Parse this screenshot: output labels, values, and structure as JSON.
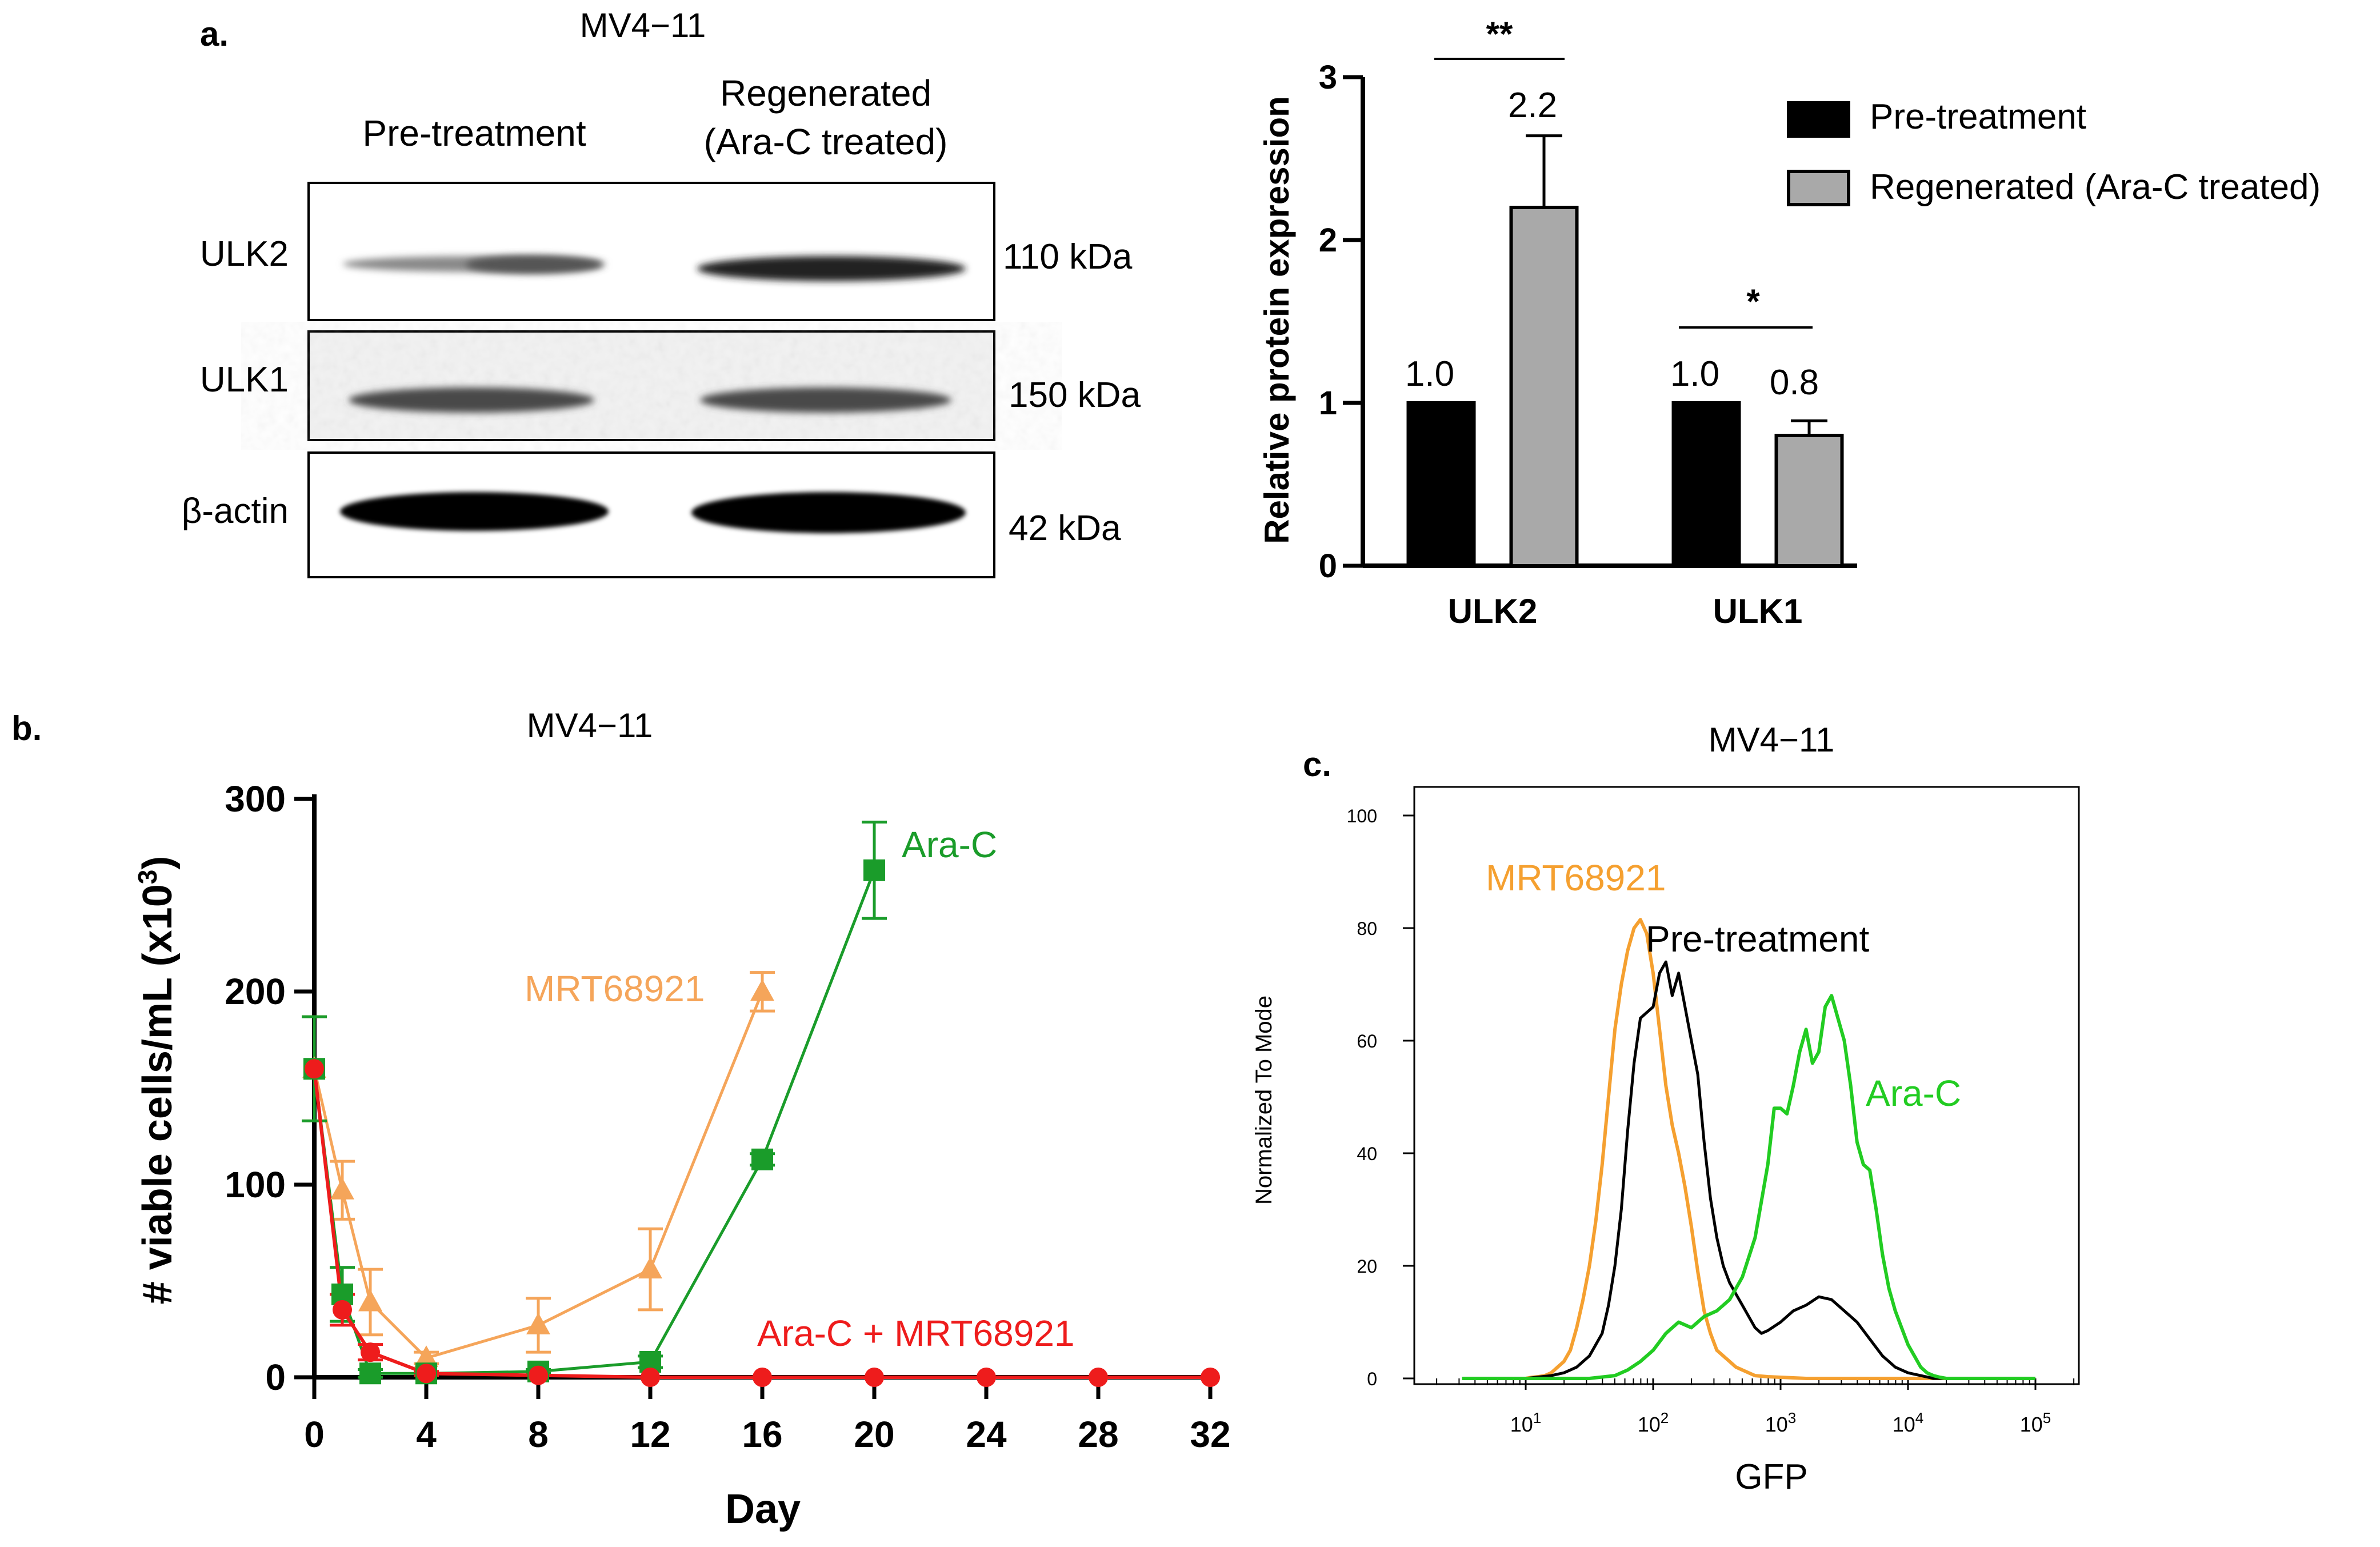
{
  "panel_a": {
    "label": "a.",
    "cell_line": "MV4−11",
    "blot": {
      "columns": [
        "Pre-treatment",
        "Regenerated",
        "(Ara-C treated)"
      ],
      "rows": [
        {
          "protein": "ULK2",
          "size": "110 kDa"
        },
        {
          "protein": "ULK1",
          "size": "150 kDa"
        },
        {
          "protein": "β-actin",
          "size": "42 kDa"
        }
      ]
    }
  },
  "panel_b": {
    "label": "b.",
    "cell_line": "MV4−11"
  },
  "panel_c": {
    "label": "c.",
    "cell_line": "MV4−11"
  },
  "colors": {
    "pre": "#000000",
    "regen": "#a9a9a9",
    "arac": "#1a9c2a",
    "mrt": "#f5a55a",
    "combo": "#ee1c1c",
    "flow_arac": "#22cc22",
    "flow_mrt": "#f5a030"
  },
  "chart_data": [
    {
      "id": "bar",
      "type": "bar",
      "categories": [
        "ULK2",
        "ULK1"
      ],
      "series": [
        {
          "name": "Pre-treatment",
          "values": [
            1.0,
            1.0
          ],
          "errors": [
            0,
            0
          ],
          "labels": [
            "1.0",
            "1.0"
          ]
        },
        {
          "name": "Regenerated (Ara-C treated)",
          "values": [
            2.2,
            0.8
          ],
          "errors": [
            0.44,
            0.09
          ],
          "labels": [
            "2.2",
            "0.8"
          ]
        }
      ],
      "significance": [
        "**",
        "*"
      ],
      "ylabel": "Relative protein expression",
      "ylim": [
        0,
        3
      ],
      "yticks": [
        "0",
        "1",
        "2",
        "3"
      ]
    },
    {
      "id": "line",
      "type": "line",
      "xlabel": "Day",
      "ylabel": "# viable cells/mL (x10",
      "ylabel_sup": "3",
      "ylabel_end": ")",
      "xlim": [
        0,
        32
      ],
      "ylim": [
        0,
        300
      ],
      "xticks": [
        "0",
        "4",
        "8",
        "12",
        "16",
        "20",
        "24",
        "28",
        "32"
      ],
      "yticks": [
        "0",
        "100",
        "200",
        "300"
      ],
      "series": [
        {
          "name": "Ara-C",
          "marker": "square",
          "x": [
            0,
            1,
            2,
            4,
            8,
            12,
            16,
            20
          ],
          "y": [
            160,
            43,
            2,
            2,
            3,
            8,
            113,
            263
          ],
          "err": [
            27,
            14,
            2,
            1,
            1,
            3,
            3,
            25
          ]
        },
        {
          "name": "MRT68921",
          "marker": "triangle",
          "x": [
            0,
            1,
            2,
            4,
            8,
            12,
            16
          ],
          "y": [
            160,
            97,
            39,
            10,
            27,
            56,
            200
          ],
          "err": [
            27,
            15,
            17,
            3,
            14,
            21,
            10
          ]
        },
        {
          "name": "Ara-C + MRT68921",
          "marker": "circle",
          "x": [
            0,
            1,
            2,
            4,
            8,
            12,
            16,
            20,
            24,
            28,
            32
          ],
          "y": [
            160,
            35,
            13,
            2,
            1,
            0,
            0,
            0,
            0,
            0,
            0
          ],
          "err": [
            0,
            8,
            4,
            1,
            0,
            0,
            0,
            0,
            0,
            0,
            0
          ]
        }
      ]
    },
    {
      "id": "flow",
      "type": "line",
      "xlabel": "GFP",
      "ylabel": "Normalized To Mode",
      "ylim": [
        0,
        100
      ],
      "yticks": [
        "0",
        "20",
        "40",
        "60",
        "80",
        "100"
      ],
      "xticks": [
        {
          "base": "10",
          "exp": "1"
        },
        {
          "base": "10",
          "exp": "2"
        },
        {
          "base": "10",
          "exp": "3"
        },
        {
          "base": "10",
          "exp": "4"
        },
        {
          "base": "10",
          "exp": "5"
        }
      ],
      "series": [
        {
          "name": "MRT68921",
          "x": [
            0.5,
            0.6,
            0.7,
            0.8,
            0.9,
            1.0,
            1.05,
            1.1,
            1.15,
            1.2,
            1.25,
            1.3,
            1.35,
            1.4,
            1.45,
            1.5,
            1.55,
            1.6,
            1.65,
            1.7,
            1.75,
            1.8,
            1.85,
            1.9,
            1.95,
            2.0,
            2.05,
            2.1,
            2.15,
            2.2,
            2.25,
            2.3,
            2.35,
            2.4,
            2.45,
            2.5,
            2.55,
            2.6,
            2.65,
            2.7,
            2.75,
            2.8,
            2.9,
            3.0,
            3.2,
            3.5,
            4.0,
            5.0
          ],
          "y": [
            0,
            0,
            0,
            0,
            0,
            0,
            0.2,
            0.3,
            0.5,
            1,
            2,
            3,
            5,
            9,
            14,
            20,
            28,
            38,
            50,
            62,
            70,
            76,
            80,
            81.5,
            79,
            72,
            62,
            52,
            45,
            40,
            34,
            27,
            19,
            12,
            8,
            5,
            4,
            3,
            2,
            1.5,
            1,
            0.5,
            0.3,
            0.2,
            0,
            0,
            0,
            0
          ]
        },
        {
          "name": "Pre-treatment",
          "x": [
            0.5,
            0.8,
            1.0,
            1.2,
            1.3,
            1.4,
            1.5,
            1.6,
            1.65,
            1.7,
            1.75,
            1.8,
            1.85,
            1.9,
            1.95,
            2.0,
            2.05,
            2.1,
            2.15,
            2.2,
            2.25,
            2.3,
            2.35,
            2.4,
            2.45,
            2.5,
            2.55,
            2.6,
            2.65,
            2.7,
            2.75,
            2.8,
            2.85,
            2.9,
            3.0,
            3.1,
            3.2,
            3.3,
            3.4,
            3.5,
            3.6,
            3.7,
            3.8,
            3.9,
            4.0,
            4.1,
            4.2,
            4.4,
            5.0
          ],
          "y": [
            0,
            0,
            0,
            0.5,
            1,
            2,
            4,
            8,
            13,
            20,
            30,
            44,
            56,
            64,
            65,
            66,
            72,
            74,
            68,
            72,
            66,
            60,
            54,
            42,
            32,
            25,
            20,
            17,
            15,
            13,
            11,
            9,
            8,
            8.5,
            10,
            12,
            13,
            14.5,
            14,
            12,
            10,
            7,
            4,
            2,
            1,
            0.5,
            0,
            0,
            0
          ]
        },
        {
          "name": "Ara-C",
          "x": [
            0.5,
            1.5,
            1.7,
            1.8,
            1.9,
            2.0,
            2.1,
            2.2,
            2.3,
            2.4,
            2.5,
            2.6,
            2.7,
            2.8,
            2.9,
            2.95,
            3.0,
            3.05,
            3.1,
            3.15,
            3.2,
            3.25,
            3.3,
            3.35,
            3.4,
            3.45,
            3.5,
            3.55,
            3.6,
            3.65,
            3.7,
            3.75,
            3.8,
            3.85,
            3.9,
            3.95,
            4.0,
            4.05,
            4.1,
            4.15,
            4.2,
            4.25,
            4.3,
            4.35,
            4.4,
            5.0
          ],
          "y": [
            0,
            0,
            0.5,
            1.5,
            3,
            5,
            8,
            10,
            9,
            11,
            12,
            14,
            18,
            25,
            38,
            48,
            48,
            47,
            52,
            58,
            62,
            56,
            58,
            66,
            68,
            64,
            60,
            52,
            42,
            38,
            37,
            30,
            22,
            16,
            12,
            9,
            6,
            4,
            2,
            1,
            0.5,
            0.2,
            0,
            0,
            0,
            0
          ]
        }
      ]
    }
  ]
}
